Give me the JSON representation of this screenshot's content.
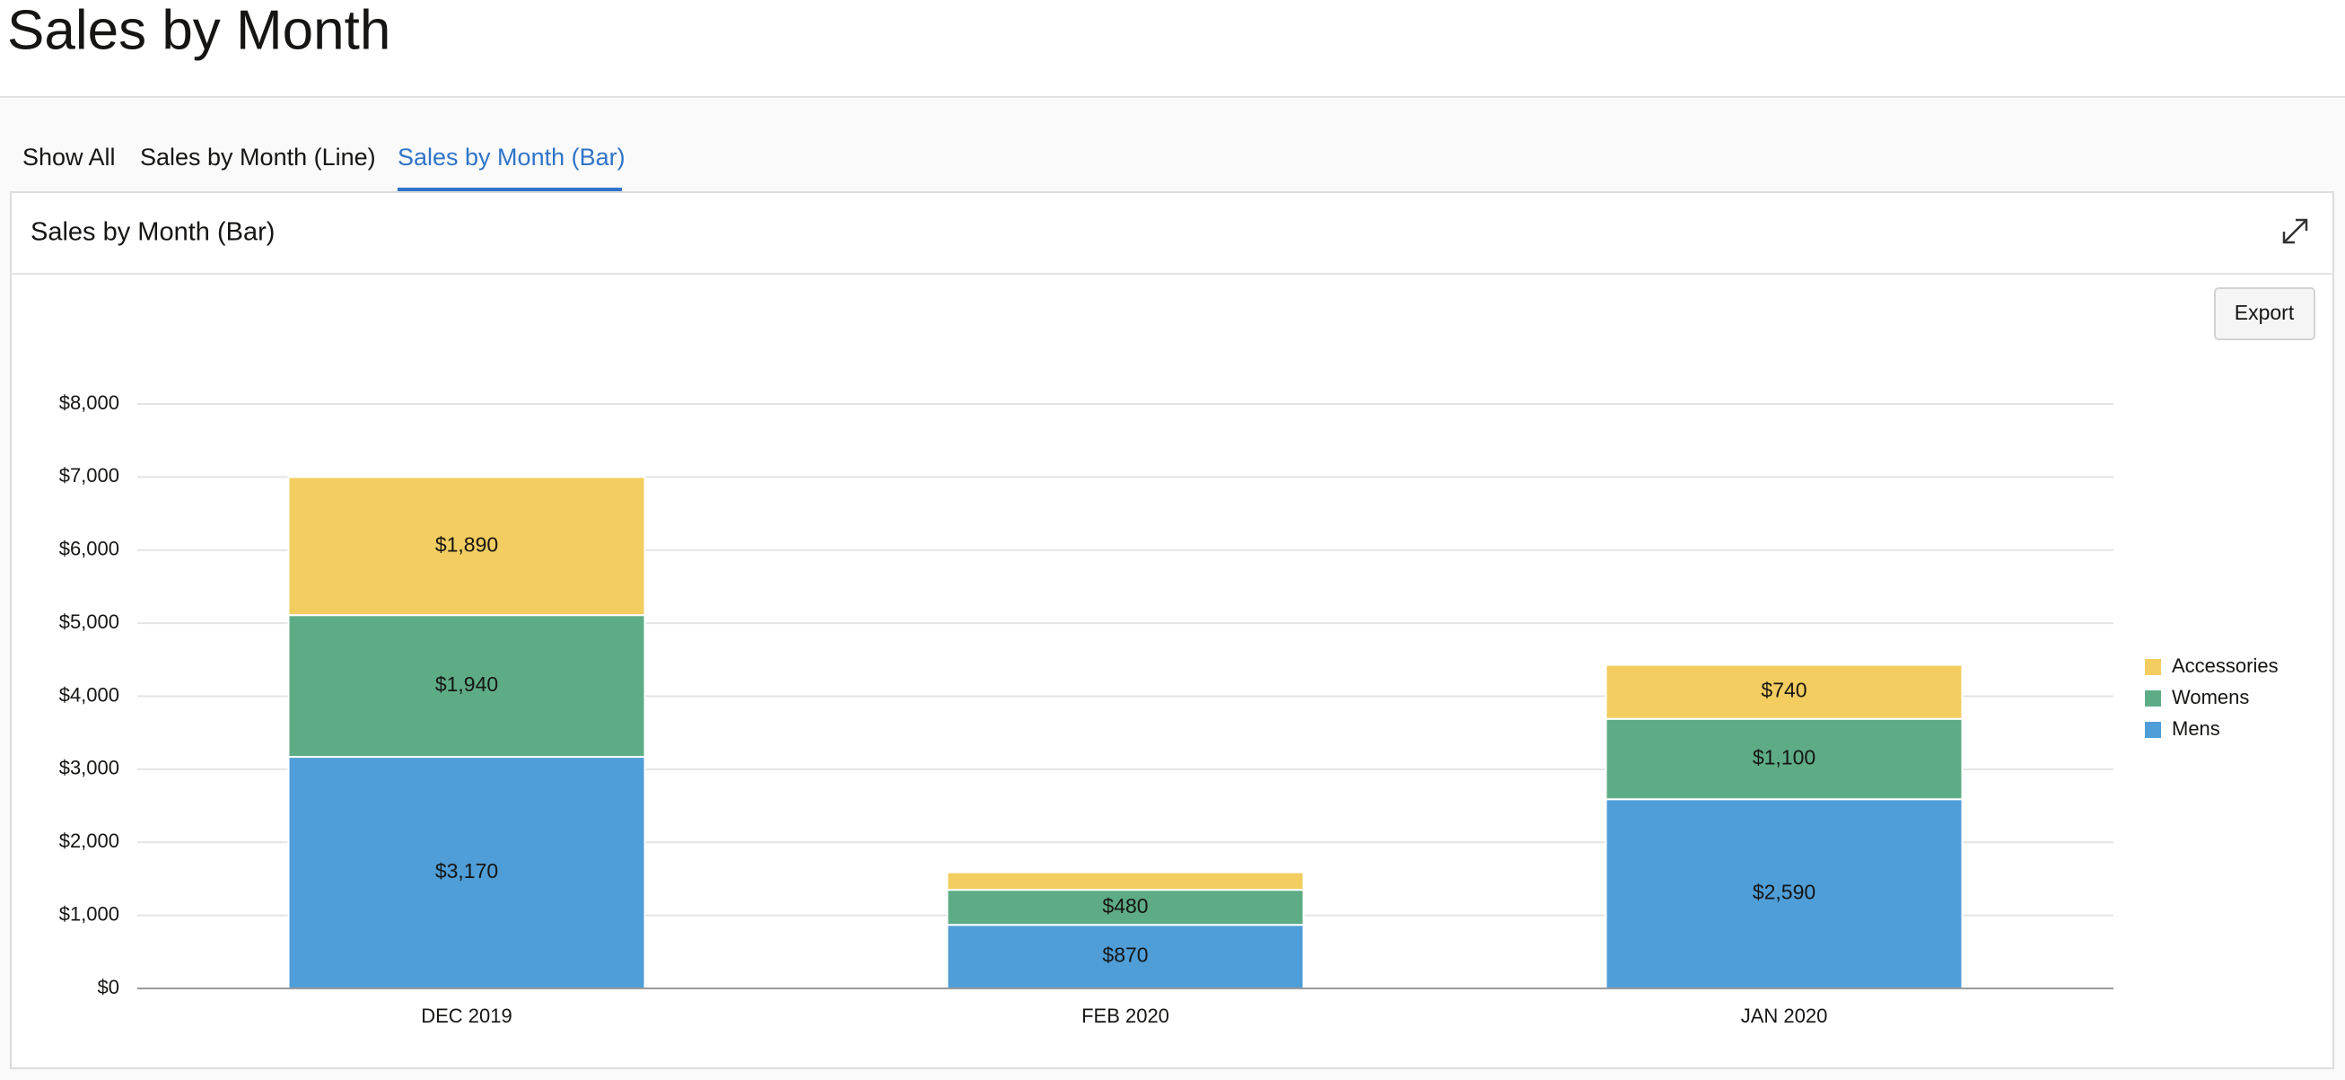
{
  "header": {
    "title": "Sales by Month"
  },
  "tabs": [
    "Show All",
    "Sales by Month (Line)",
    "Sales by Month (Bar)"
  ],
  "region": {
    "title": "Sales by Month (Bar)",
    "export_button": "Export"
  },
  "chart_data": {
    "type": "stacked-bar",
    "categories": [
      "DEC 2019",
      "FEB 2020",
      "JAN 2020"
    ],
    "series": [
      {
        "name": "Mens",
        "color": "#4f9ed8",
        "values": [
          3170,
          870,
          2590
        ],
        "value_labels": [
          "$3,170",
          "$870",
          "$2,590"
        ]
      },
      {
        "name": "Womens",
        "color": "#5eac86",
        "values": [
          1940,
          480,
          1100
        ],
        "value_labels": [
          "$1,940",
          "$480",
          "$1,100"
        ]
      },
      {
        "name": "Accessories",
        "color": "#f3cd60",
        "values": [
          1890,
          240,
          740
        ],
        "value_labels": [
          "$1,890",
          null,
          "$740"
        ]
      }
    ],
    "ylim": [
      0,
      8000
    ],
    "yticks": [
      {
        "value": 0,
        "label": "$0"
      },
      {
        "value": 1000,
        "label": "$1,000"
      },
      {
        "value": 2000,
        "label": "$2,000"
      },
      {
        "value": 3000,
        "label": "$3,000"
      },
      {
        "value": 4000,
        "label": "$4,000"
      },
      {
        "value": 5000,
        "label": "$5,000"
      },
      {
        "value": 6000,
        "label": "$6,000"
      },
      {
        "value": 7000,
        "label": "$7,000"
      },
      {
        "value": 8000,
        "label": "$8,000"
      }
    ],
    "grid": true,
    "legend": "right"
  }
}
